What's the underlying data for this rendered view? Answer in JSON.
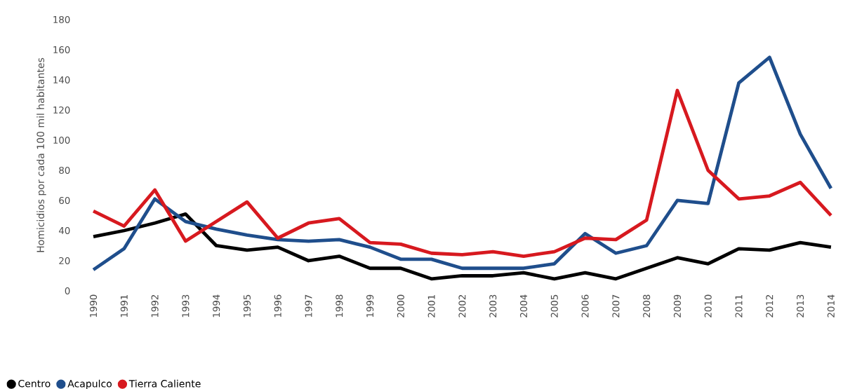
{
  "chart_data": {
    "type": "line",
    "ylabel": "Homicidios por cada 100 mil habitantes",
    "categories": [
      "1990",
      "1991",
      "1992",
      "1993",
      "1994",
      "1995",
      "1996",
      "1997",
      "1998",
      "1999",
      "2000",
      "2001",
      "2002",
      "2003",
      "2004",
      "2005",
      "2006",
      "2007",
      "2008",
      "2009",
      "2010",
      "2011",
      "2012",
      "2013",
      "2014"
    ],
    "series": [
      {
        "name": "Centro",
        "color": "#000000",
        "values": [
          36,
          40,
          45,
          51,
          30,
          27,
          29,
          20,
          23,
          15,
          15,
          8,
          10,
          10,
          12,
          8,
          12,
          8,
          15,
          22,
          18,
          28,
          27,
          32,
          29
        ]
      },
      {
        "name": "Acapulco",
        "color": "#1f4e8c",
        "values": [
          14,
          28,
          61,
          46,
          41,
          37,
          34,
          33,
          34,
          29,
          21,
          21,
          15,
          15,
          15,
          18,
          38,
          25,
          30,
          60,
          58,
          138,
          155,
          104,
          68
        ]
      },
      {
        "name": "Tierra Caliente",
        "color": "#d7191f",
        "values": [
          53,
          43,
          67,
          33,
          46,
          59,
          35,
          45,
          48,
          32,
          31,
          25,
          24,
          26,
          23,
          26,
          35,
          34,
          47,
          133,
          80,
          61,
          63,
          72,
          50
        ]
      }
    ],
    "ylim": [
      0,
      180
    ],
    "yticks": [
      0,
      20,
      40,
      60,
      80,
      100,
      120,
      140,
      160,
      180
    ],
    "grid": false,
    "legend": "bottom",
    "marker": "none",
    "line_style": "solid"
  }
}
